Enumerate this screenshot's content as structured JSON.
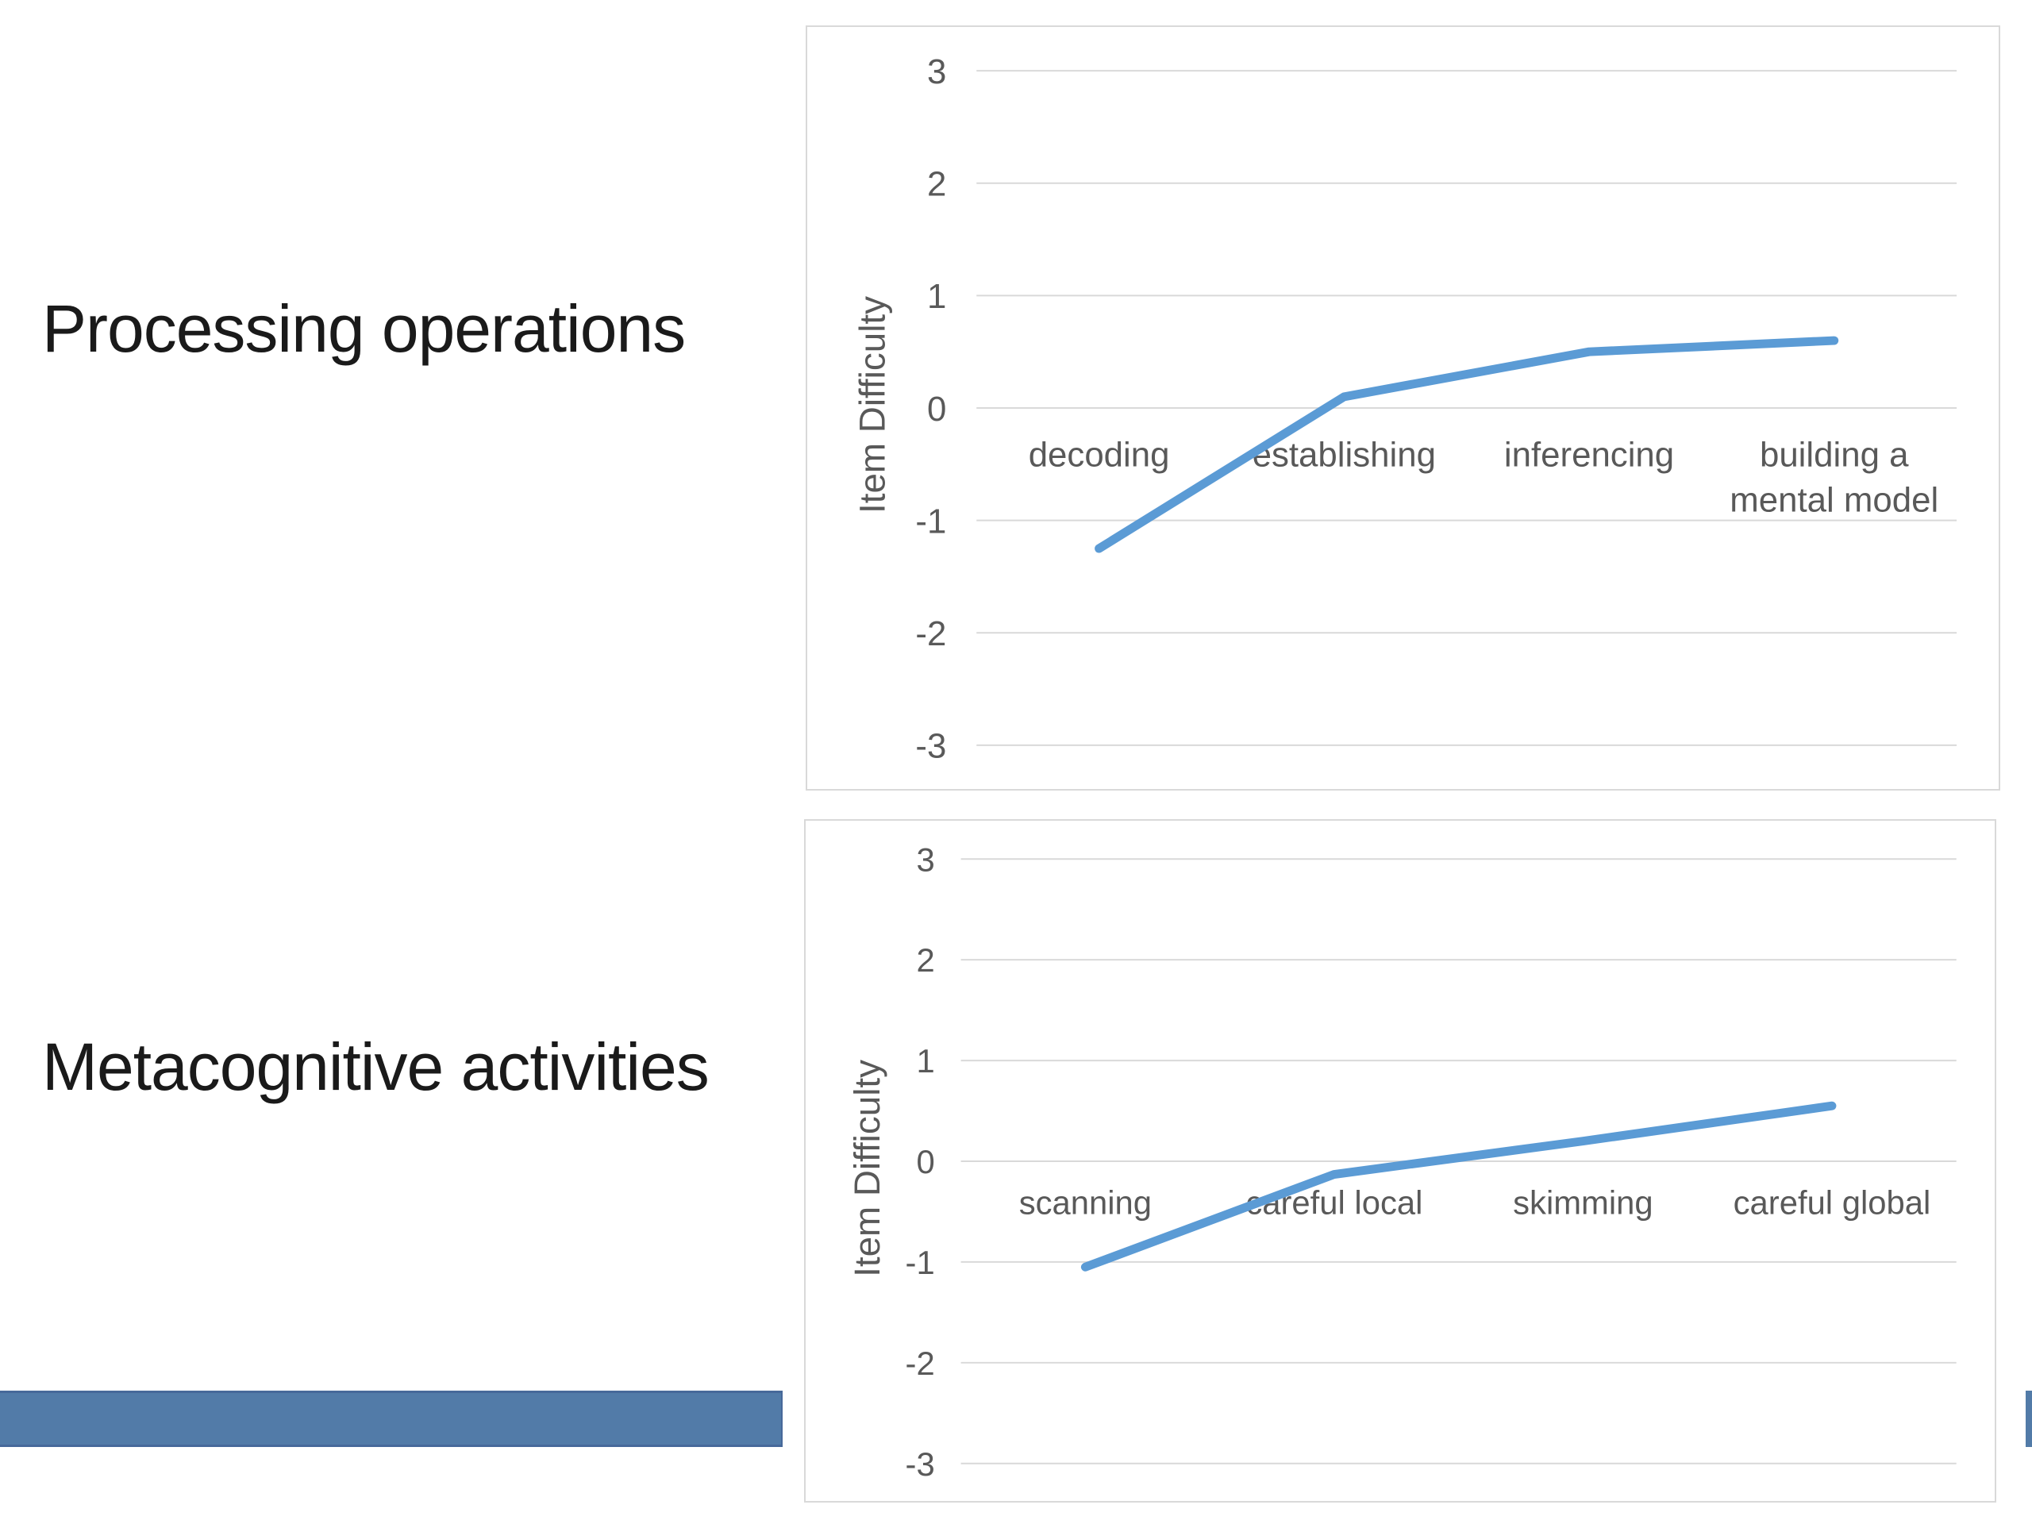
{
  "slide": {
    "sections": [
      {
        "title": "Processing operations"
      },
      {
        "title": "Metacognitive activities"
      }
    ]
  },
  "chart_data": [
    {
      "type": "line",
      "section": "Processing operations",
      "categories": [
        "decoding",
        "establishing",
        "inferencing",
        "building a mental model"
      ],
      "values": [
        -1.25,
        0.1,
        0.5,
        0.6
      ],
      "title": "",
      "xlabel": "",
      "ylabel": "Item Difficulty",
      "ylim": [
        -3,
        3
      ],
      "yticks": [
        3,
        2,
        1,
        0,
        -1,
        -2,
        -3
      ],
      "grid": true,
      "legend": "none"
    },
    {
      "type": "line",
      "section": "Metacognitive activities",
      "categories": [
        "scanning",
        "careful local",
        "skimming",
        "careful global"
      ],
      "values": [
        -1.05,
        -0.13,
        0.2,
        0.55
      ],
      "title": "",
      "xlabel": "",
      "ylabel": "Item Difficulty",
      "ylim": [
        -3,
        3
      ],
      "yticks": [
        3,
        2,
        1,
        0,
        -1,
        -2,
        -3
      ],
      "grid": true,
      "legend": "none"
    }
  ],
  "colors": {
    "line": "#5B9BD5",
    "grid": "#D9D9D9",
    "axis_text": "#595959",
    "chart_border": "#D9D9D9",
    "title_text": "#1A1A1A",
    "accent_bar": "#527BA8"
  }
}
